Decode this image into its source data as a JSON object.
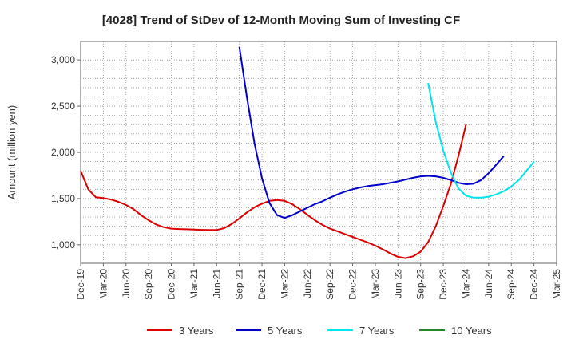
{
  "chart_data": {
    "type": "line",
    "title": "[4028]  Trend of StDev of 12-Month Moving Sum of Investing CF",
    "ylabel": "Amount (million yen)",
    "xlabel": "",
    "ylim": [
      800,
      3200
    ],
    "yticks": [
      1000,
      1500,
      2000,
      2500,
      3000
    ],
    "ytick_labels": [
      "1,000",
      "1,500",
      "2,000",
      "2,500",
      "3,000"
    ],
    "xticks": [
      "Dec-19",
      "Mar-20",
      "Jun-20",
      "Sep-20",
      "Dec-20",
      "Mar-21",
      "Jun-21",
      "Sep-21",
      "Dec-21",
      "Mar-22",
      "Jun-22",
      "Sep-22",
      "Dec-22",
      "Mar-23",
      "Jun-23",
      "Sep-23",
      "Dec-23",
      "Mar-24",
      "Jun-24",
      "Sep-24",
      "Dec-24",
      "Mar-25"
    ],
    "grid": true,
    "legend_position": "bottom",
    "series": [
      {
        "name": "3 Years",
        "color": "#dd0000",
        "start_index": 0,
        "values": [
          1800,
          1600,
          1515,
          1505,
          1490,
          1465,
          1430,
          1385,
          1320,
          1265,
          1220,
          1190,
          1175,
          1170,
          1168,
          1165,
          1162,
          1160,
          1160,
          1180,
          1225,
          1285,
          1350,
          1405,
          1445,
          1475,
          1485,
          1475,
          1440,
          1385,
          1325,
          1265,
          1215,
          1175,
          1145,
          1115,
          1085,
          1055,
          1025,
          990,
          950,
          905,
          870,
          855,
          875,
          925,
          1030,
          1200,
          1420,
          1660,
          1960,
          2300
        ]
      },
      {
        "name": "5 Years",
        "color": "#0000cc",
        "start_index": 21,
        "values": [
          3140,
          2600,
          2100,
          1720,
          1450,
          1320,
          1290,
          1320,
          1360,
          1400,
          1440,
          1470,
          1510,
          1545,
          1575,
          1600,
          1620,
          1635,
          1645,
          1655,
          1670,
          1685,
          1705,
          1725,
          1740,
          1745,
          1740,
          1725,
          1700,
          1670,
          1655,
          1660,
          1700,
          1775,
          1865,
          1960
        ]
      },
      {
        "name": "7 Years",
        "color": "#00e5ee",
        "start_index": 46,
        "values": [
          2750,
          2330,
          2020,
          1780,
          1610,
          1530,
          1510,
          1510,
          1520,
          1545,
          1580,
          1630,
          1700,
          1800,
          1900
        ]
      },
      {
        "name": "10 Years",
        "color": "#228822",
        "start_index": 0,
        "values": []
      }
    ]
  }
}
